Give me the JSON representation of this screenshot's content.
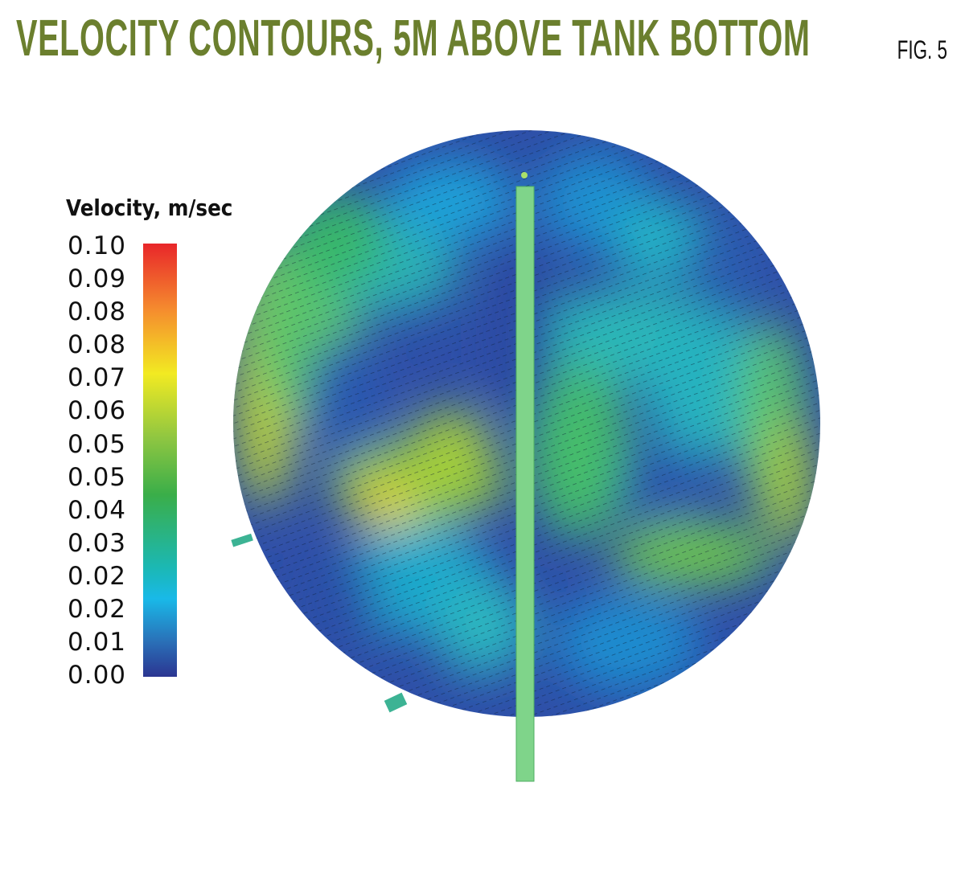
{
  "header": {
    "title": "VELOCITY CONTOURS, 5M ABOVE TANK BOTTOM",
    "figure_label": "FIG. 5"
  },
  "chart_data": {
    "type": "heatmap",
    "title": "VELOCITY CONTOURS, 5M ABOVE TANK BOTTOM",
    "colorbar": {
      "label": "Velocity, m/sec",
      "ticks": [
        "0.10",
        "0.09",
        "0.08",
        "0.08",
        "0.07",
        "0.06",
        "0.05",
        "0.05",
        "0.04",
        "0.03",
        "0.02",
        "0.02",
        "0.01",
        "0.00"
      ],
      "range": [
        0,
        0.1
      ],
      "colormap": [
        "#2b3591",
        "#2a6fb7",
        "#19b9e8",
        "#1bb8b5",
        "#3aae49",
        "#8ec641",
        "#f2ea22",
        "#f58a2e",
        "#e8262a"
      ]
    },
    "colors": {
      "title": "#6b7f2e",
      "pipe": "#7fd48a"
    }
  }
}
